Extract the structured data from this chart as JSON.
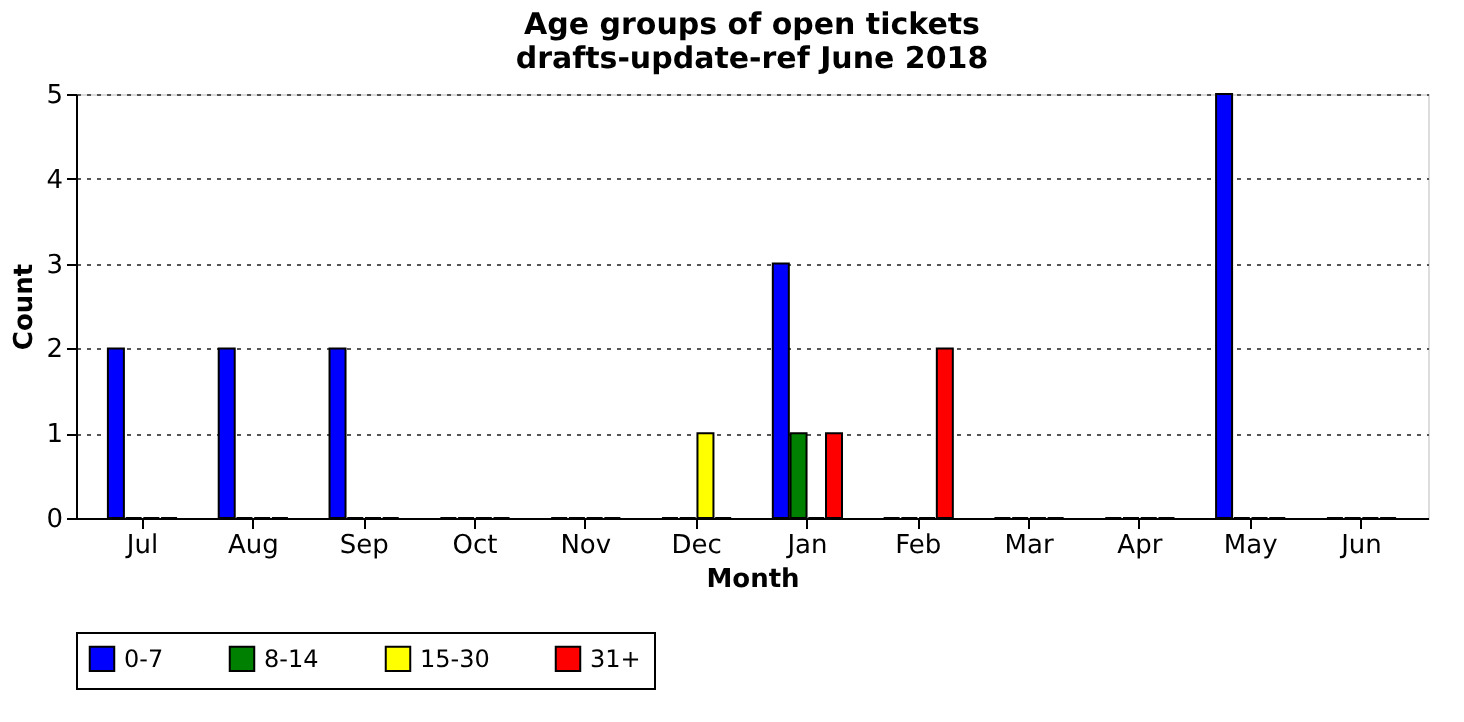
{
  "chart_data": {
    "type": "bar",
    "title": "Age groups of open tickets\ndrafts-update-ref June 2018",
    "xlabel": "Month",
    "ylabel": "Count",
    "categories": [
      "Jul",
      "Aug",
      "Sep",
      "Oct",
      "Nov",
      "Dec",
      "Jan",
      "Feb",
      "Mar",
      "Apr",
      "May",
      "Jun"
    ],
    "series": [
      {
        "name": "0-7",
        "color": "#0000ff",
        "values": [
          2,
          2,
          2,
          0,
          0,
          0,
          3,
          0,
          0,
          0,
          5,
          0
        ]
      },
      {
        "name": "8-14",
        "color": "#008000",
        "values": [
          0,
          0,
          0,
          0,
          0,
          0,
          1,
          0,
          0,
          0,
          0,
          0
        ]
      },
      {
        "name": "15-30",
        "color": "#ffff00",
        "values": [
          0,
          0,
          0,
          0,
          0,
          1,
          0,
          0,
          0,
          0,
          0,
          0
        ]
      },
      {
        "name": "31+",
        "color": "#ff0000",
        "values": [
          0,
          0,
          0,
          0,
          0,
          0,
          1,
          2,
          0,
          0,
          0,
          0
        ]
      }
    ],
    "ylim": [
      0,
      5
    ],
    "yticks": [
      0,
      1,
      2,
      3,
      4,
      5
    ],
    "grid": "y",
    "legend": "bottom"
  }
}
